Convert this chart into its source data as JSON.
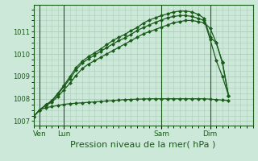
{
  "bg_color": "#cce8d8",
  "grid_color": "#aaccb8",
  "line_color": "#1a5c1a",
  "tick_label_color": "#1a5c1a",
  "xlabel": "Pression niveau de la mer( hPa )",
  "xlabel_fontsize": 8,
  "ylim": [
    1006.8,
    1012.2
  ],
  "yticks": [
    1007,
    1008,
    1009,
    1010,
    1011
  ],
  "xlim": [
    0,
    36
  ],
  "day_positions": [
    1,
    5,
    21,
    29
  ],
  "day_labels": [
    "Ven",
    "Lun",
    "Sam",
    "Dim"
  ],
  "line1_x": [
    0,
    1,
    2,
    3,
    4,
    5,
    6,
    7,
    8,
    9,
    10,
    11,
    12,
    13,
    14,
    15,
    16,
    17,
    18,
    19,
    20,
    21,
    22,
    23,
    24,
    25,
    26,
    27,
    28,
    29,
    30,
    31,
    32
  ],
  "line1_y": [
    1007.2,
    1007.5,
    1007.6,
    1007.65,
    1007.7,
    1007.75,
    1007.78,
    1007.8,
    1007.82,
    1007.84,
    1007.86,
    1007.88,
    1007.9,
    1007.92,
    1007.94,
    1007.96,
    1007.97,
    1007.98,
    1007.99,
    1008.0,
    1008.0,
    1008.0,
    1008.0,
    1008.0,
    1008.0,
    1008.0,
    1008.0,
    1008.0,
    1008.0,
    1007.98,
    1007.96,
    1007.94,
    1007.92
  ],
  "line2_x": [
    0,
    1,
    2,
    3,
    4,
    5,
    6,
    7,
    8,
    9,
    10,
    11,
    12,
    13,
    14,
    15,
    16,
    17,
    18,
    19,
    20,
    21,
    22,
    23,
    24,
    25,
    26,
    27,
    28,
    29,
    30,
    31,
    32
  ],
  "line2_y": [
    1007.2,
    1007.5,
    1007.7,
    1007.85,
    1008.1,
    1008.4,
    1008.7,
    1009.05,
    1009.35,
    1009.55,
    1009.7,
    1009.85,
    1010.0,
    1010.15,
    1010.3,
    1010.45,
    1010.6,
    1010.75,
    1010.9,
    1011.0,
    1011.1,
    1011.2,
    1011.3,
    1011.4,
    1011.45,
    1011.5,
    1011.5,
    1011.45,
    1011.4,
    1011.15,
    1010.5,
    1009.6,
    1008.15
  ],
  "line3_x": [
    0,
    1,
    2,
    3,
    4,
    5,
    6,
    7,
    8,
    9,
    10,
    11,
    12,
    13,
    14,
    15,
    16,
    17,
    18,
    19,
    20,
    21,
    22,
    23,
    24,
    25,
    26,
    27,
    28,
    29,
    30,
    31,
    32
  ],
  "line3_y": [
    1007.2,
    1007.5,
    1007.72,
    1007.9,
    1008.2,
    1008.55,
    1008.9,
    1009.3,
    1009.6,
    1009.78,
    1009.95,
    1010.12,
    1010.28,
    1010.45,
    1010.6,
    1010.72,
    1010.88,
    1011.05,
    1011.18,
    1011.3,
    1011.42,
    1011.52,
    1011.62,
    1011.68,
    1011.72,
    1011.72,
    1011.68,
    1011.6,
    1011.5,
    1010.65,
    1009.7,
    1009.0,
    1008.15
  ],
  "line4_x": [
    0,
    1,
    2,
    3,
    4,
    5,
    6,
    7,
    8,
    9,
    10,
    11,
    12,
    13,
    14,
    15,
    16,
    17,
    18,
    19,
    20,
    21,
    22,
    23,
    24,
    25,
    26,
    27,
    28,
    29,
    30,
    31,
    32
  ],
  "line4_y": [
    1007.2,
    1007.5,
    1007.72,
    1007.92,
    1008.25,
    1008.6,
    1009.0,
    1009.4,
    1009.68,
    1009.88,
    1010.05,
    1010.22,
    1010.42,
    1010.6,
    1010.75,
    1010.88,
    1011.05,
    1011.18,
    1011.38,
    1011.52,
    1011.62,
    1011.72,
    1011.8,
    1011.88,
    1011.92,
    1011.92,
    1011.88,
    1011.78,
    1011.6,
    1010.75,
    1010.5,
    1009.65,
    1008.15
  ]
}
